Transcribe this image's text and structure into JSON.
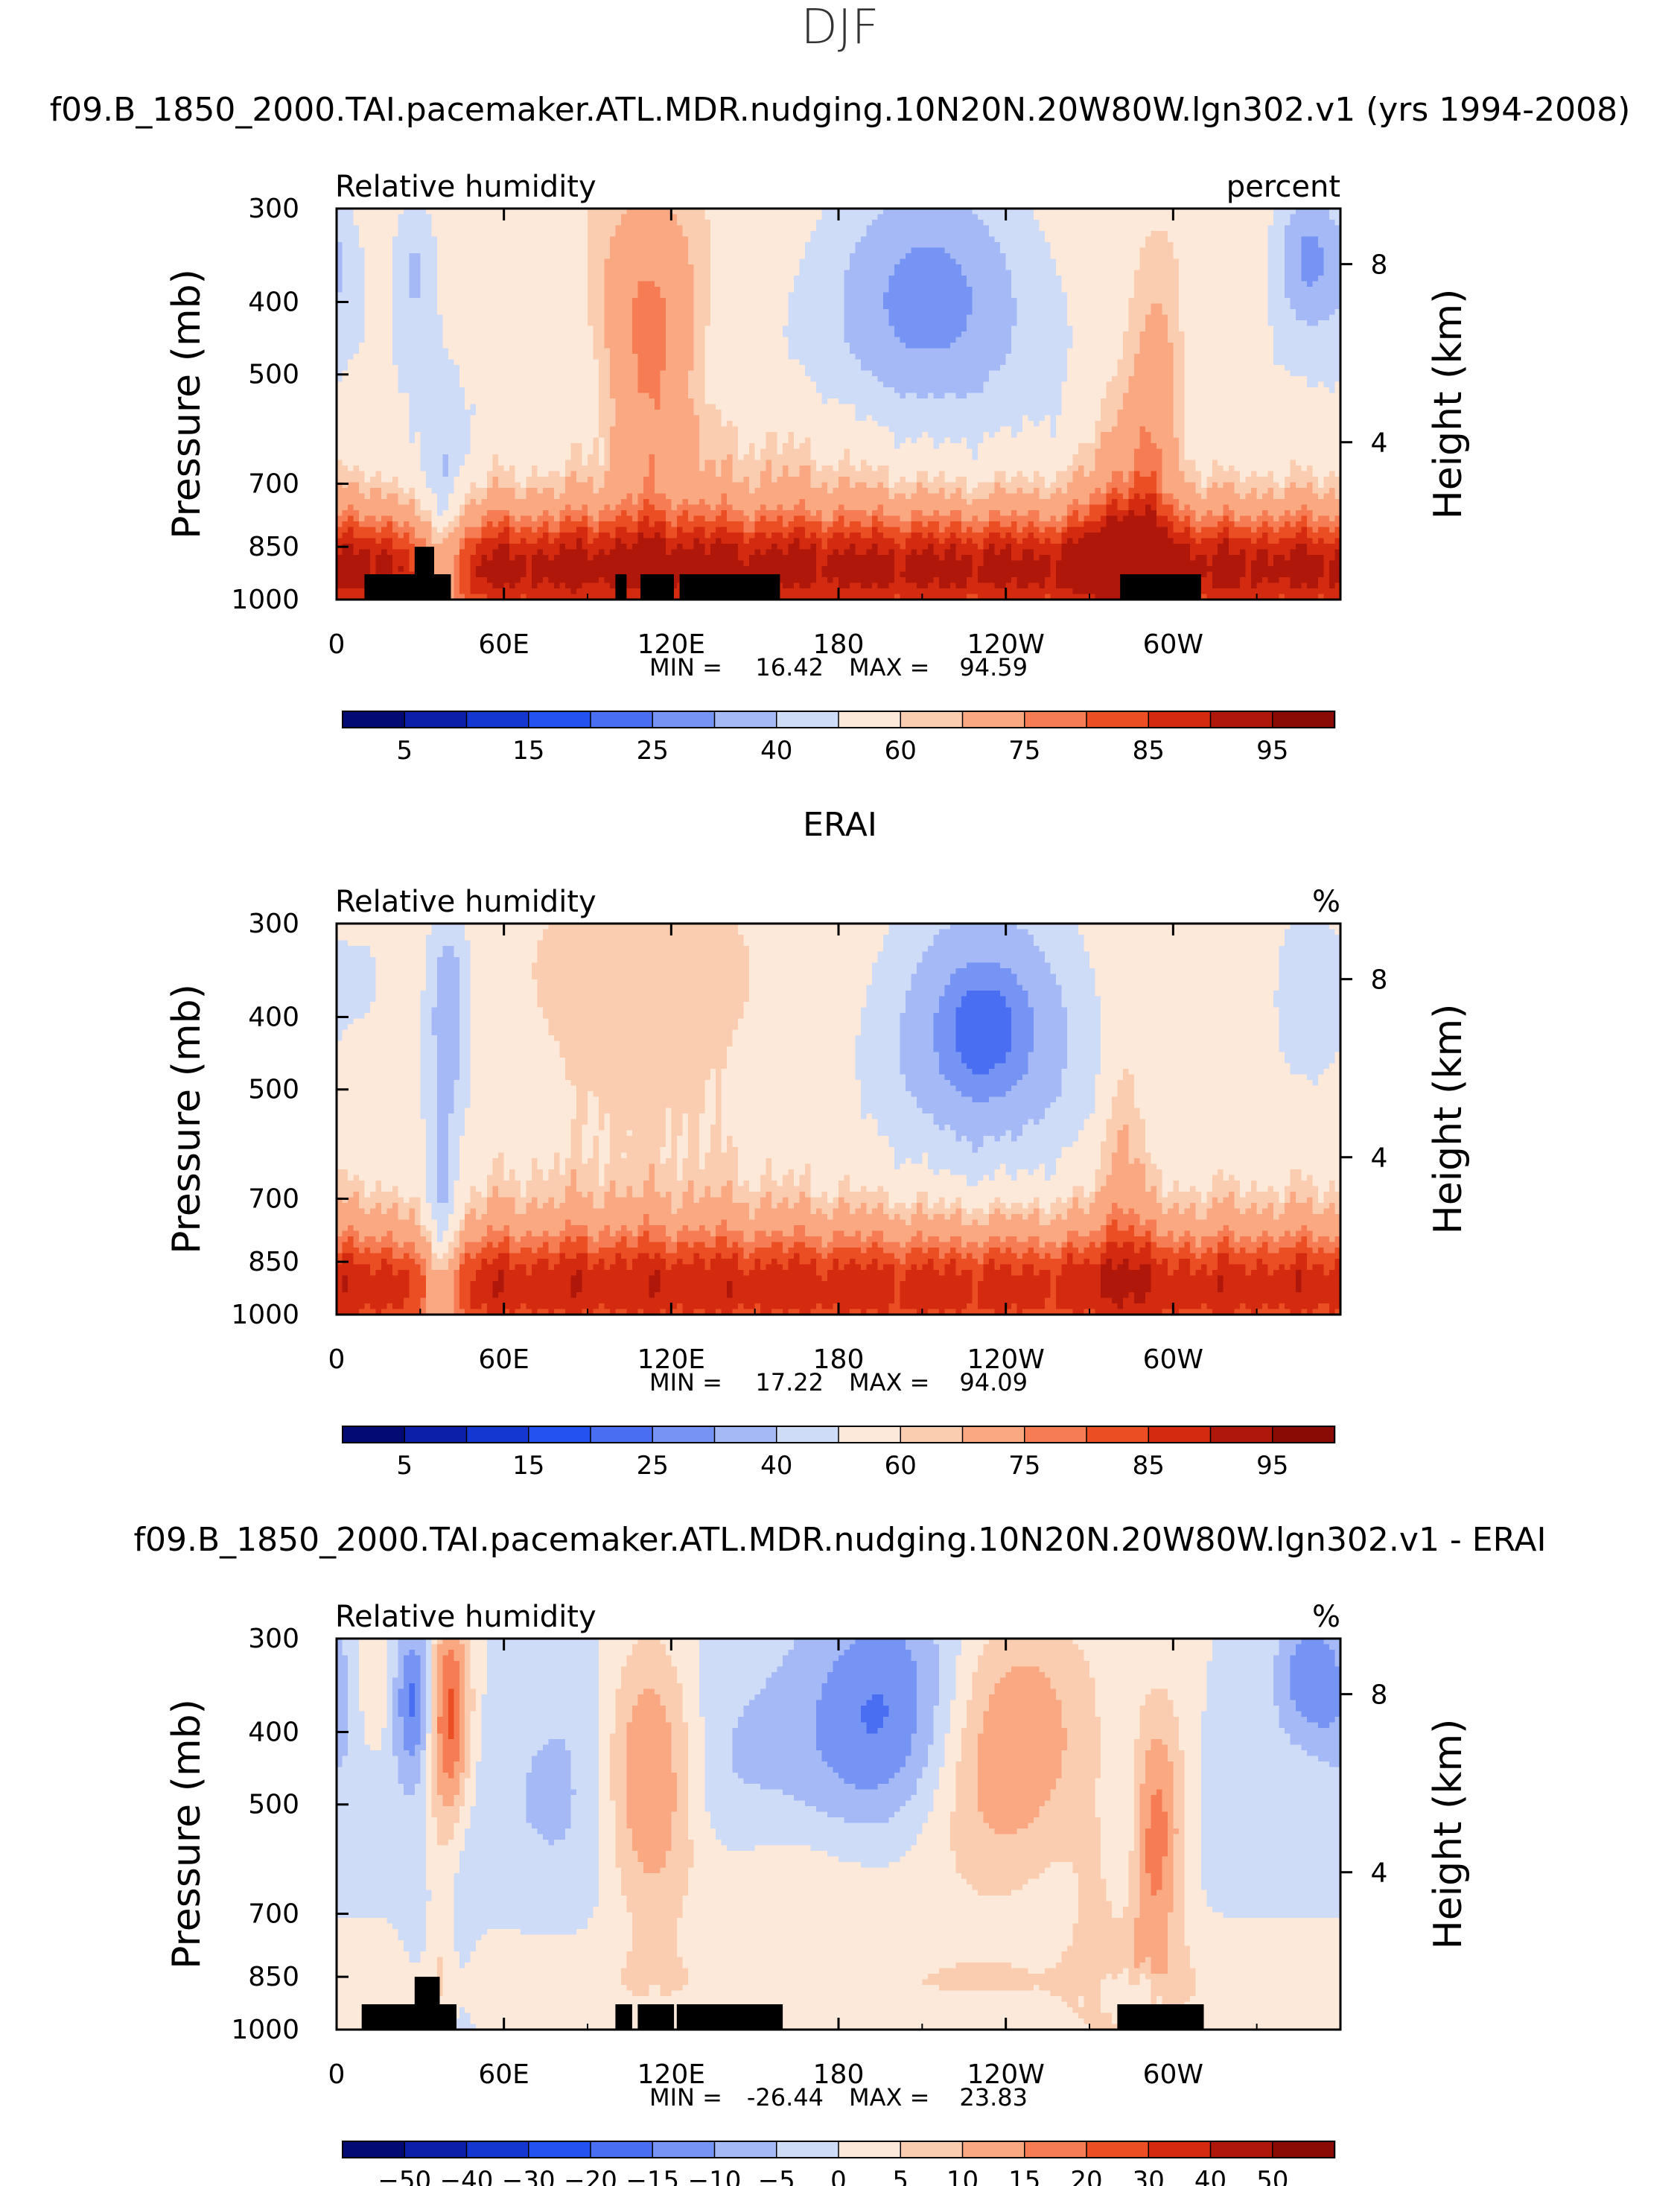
{
  "page": {
    "title": "DJF"
  },
  "chart_data": [
    {
      "type": "contour",
      "title": "f09.B_1850_2000.TAI.pacemaker.ATL.MDR.nudging.10N20N.20W80W.lgn302.v1 (yrs 1994-2008)",
      "left_label": "Relative humidity",
      "right_label": "percent",
      "ylabel": "Pressure (mb)",
      "ylabel_right": "Height (km)",
      "x_ticks": [
        "0",
        "60E",
        "120E",
        "180",
        "120W",
        "60W"
      ],
      "y_ticks": [
        "300",
        "400",
        "500",
        "700",
        "850",
        "1000"
      ],
      "y_ticks_right": [
        "8",
        "4"
      ],
      "xlim": [
        0,
        360
      ],
      "ylim": [
        1000,
        300
      ],
      "stats": {
        "min_label": "MIN =",
        "min": "16.42",
        "max_label": "MAX =",
        "max": "94.59"
      },
      "colorbar": {
        "levels": [
          5,
          10,
          15,
          20,
          25,
          30,
          40,
          50,
          60,
          65,
          75,
          80,
          85,
          90,
          95
        ],
        "tick_labels": [
          "5",
          "15",
          "25",
          "40",
          "60",
          "75",
          "85",
          "95"
        ],
        "colors": [
          "#040a73",
          "#0b1fa8",
          "#1537d1",
          "#2452f0",
          "#4a6ef2",
          "#7594f3",
          "#a4b9f5",
          "#cfdcf8",
          "#fde9d9",
          "#fbcdb0",
          "#f9a882",
          "#f57c53",
          "#ec4e24",
          "#d42a10",
          "#b0170b",
          "#8a0a05"
        ]
      },
      "field": "model_rh"
    },
    {
      "type": "contour",
      "title": "ERAI",
      "left_label": "Relative humidity",
      "right_label": "%",
      "ylabel": "Pressure (mb)",
      "ylabel_right": "Height (km)",
      "x_ticks": [
        "0",
        "60E",
        "120E",
        "180",
        "120W",
        "60W"
      ],
      "y_ticks": [
        "300",
        "400",
        "500",
        "700",
        "850",
        "1000"
      ],
      "y_ticks_right": [
        "8",
        "4"
      ],
      "xlim": [
        0,
        360
      ],
      "ylim": [
        1000,
        300
      ],
      "stats": {
        "min_label": "MIN =",
        "min": "17.22",
        "max_label": "MAX =",
        "max": "94.09"
      },
      "colorbar": {
        "levels": [
          5,
          10,
          15,
          20,
          25,
          30,
          40,
          50,
          60,
          65,
          75,
          80,
          85,
          90,
          95
        ],
        "tick_labels": [
          "5",
          "15",
          "25",
          "40",
          "60",
          "75",
          "85",
          "95"
        ],
        "colors": [
          "#040a73",
          "#0b1fa8",
          "#1537d1",
          "#2452f0",
          "#4a6ef2",
          "#7594f3",
          "#a4b9f5",
          "#cfdcf8",
          "#fde9d9",
          "#fbcdb0",
          "#f9a882",
          "#f57c53",
          "#ec4e24",
          "#d42a10",
          "#b0170b",
          "#8a0a05"
        ]
      },
      "field": "erai_rh"
    },
    {
      "type": "contour",
      "title": "f09.B_1850_2000.TAI.pacemaker.ATL.MDR.nudging.10N20N.20W80W.lgn302.v1 - ERAI",
      "left_label": "Relative humidity",
      "right_label": "%",
      "ylabel": "Pressure (mb)",
      "ylabel_right": "Height (km)",
      "x_ticks": [
        "0",
        "60E",
        "120E",
        "180",
        "120W",
        "60W"
      ],
      "y_ticks": [
        "300",
        "400",
        "500",
        "700",
        "850",
        "1000"
      ],
      "y_ticks_right": [
        "8",
        "4"
      ],
      "xlim": [
        0,
        360
      ],
      "ylim": [
        1000,
        300
      ],
      "stats": {
        "min_label": "MIN =",
        "min": "-26.44",
        "max_label": "MAX =",
        "max": "23.83"
      },
      "colorbar": {
        "levels": [
          -50,
          -40,
          -30,
          -20,
          -15,
          -10,
          -5,
          0,
          5,
          10,
          15,
          20,
          30,
          40,
          50
        ],
        "tick_labels": [
          "−50",
          "−40",
          "−30",
          "−20",
          "−15",
          "−10",
          "−5",
          "0",
          "5",
          "10",
          "15",
          "20",
          "30",
          "40",
          "50"
        ],
        "colors": [
          "#040a73",
          "#0b1fa8",
          "#1537d1",
          "#2452f0",
          "#4a6ef2",
          "#7594f3",
          "#a4b9f5",
          "#cfdcf8",
          "#fde9d9",
          "#fbcdb0",
          "#f9a882",
          "#f57c53",
          "#ec4e24",
          "#d42a10",
          "#b0170b",
          "#8a0a05"
        ]
      },
      "field": "diff_rh"
    }
  ]
}
